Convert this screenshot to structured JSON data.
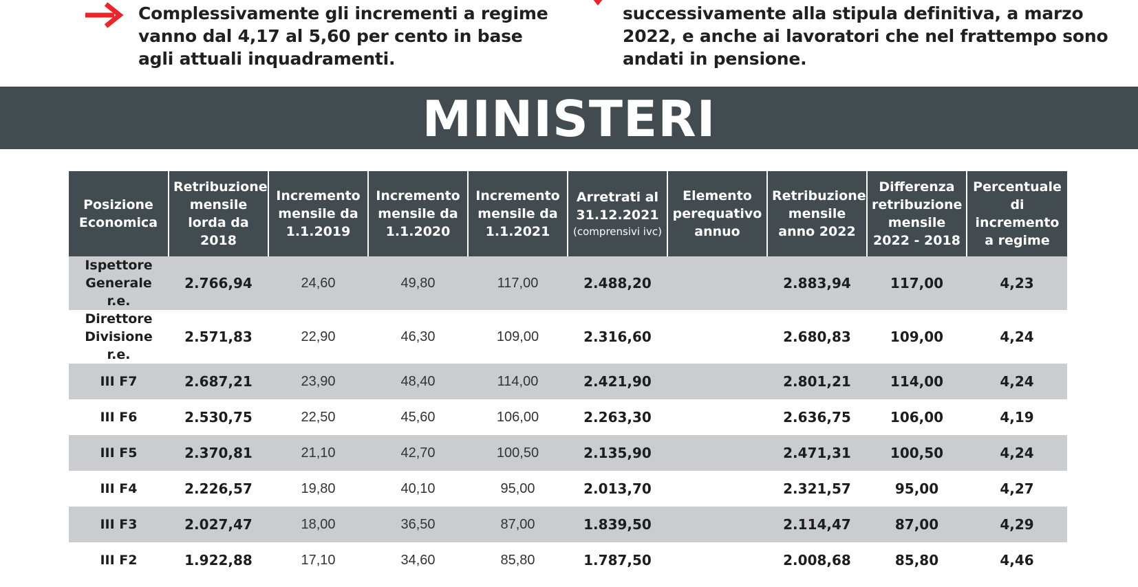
{
  "notes": {
    "left": "Complessivamente gli incrementi a regime vanno dal 4,17 al 5,60 per cento in base agli attuali inquadramenti.",
    "right": "successivamente alla stipula definitiva, a marzo 2022, e anche ai lavoratori che nel frattempo sono andati in pensione.",
    "accent_color": "#e8262b",
    "left_icon": "arrow-right-icon",
    "right_icon": "arrow-marker-icon"
  },
  "banner": {
    "title": "MINISTERI",
    "background": "#424b50"
  },
  "table": {
    "headers": [
      {
        "label": "Posizione Economica",
        "sub": ""
      },
      {
        "label": "Retribuzione mensile lorda da 2018",
        "sub": ""
      },
      {
        "label": "Incremento mensile da 1.1.2019",
        "sub": ""
      },
      {
        "label": "Incremento mensile da 1.1.2020",
        "sub": ""
      },
      {
        "label": "Incremento mensile da 1.1.2021",
        "sub": ""
      },
      {
        "label": "Arretrati al 31.12.2021",
        "sub": "(comprensivi ivc)"
      },
      {
        "label": "Elemento perequativo annuo",
        "sub": ""
      },
      {
        "label": "Retribuzione mensile anno 2022",
        "sub": ""
      },
      {
        "label": "Differenza retribuzione mensile 2022 - 2018",
        "sub": ""
      },
      {
        "label": "Percentuale di incremento a regime",
        "sub": ""
      }
    ],
    "rows": [
      {
        "cells": [
          "Ispettore Generale r.e.",
          "2.766,94",
          "24,60",
          "49,80",
          "117,00",
          "2.488,20",
          "",
          "2.883,94",
          "117,00",
          "4,23"
        ]
      },
      {
        "cells": [
          "Direttore Divisione r.e.",
          "2.571,83",
          "22,90",
          "46,30",
          "109,00",
          "2.316,60",
          "",
          "2.680,83",
          "109,00",
          "4,24"
        ]
      },
      {
        "cells": [
          "III F7",
          "2.687,21",
          "23,90",
          "48,40",
          "114,00",
          "2.421,90",
          "",
          "2.801,21",
          "114,00",
          "4,24"
        ]
      },
      {
        "cells": [
          "III F6",
          "2.530,75",
          "22,50",
          "45,60",
          "106,00",
          "2.263,30",
          "",
          "2.636,75",
          "106,00",
          "4,19"
        ]
      },
      {
        "cells": [
          "III F5",
          "2.370,81",
          "21,10",
          "42,70",
          "100,50",
          "2.135,90",
          "",
          "2.471,31",
          "100,50",
          "4,24"
        ]
      },
      {
        "cells": [
          "III F4",
          "2.226,57",
          "19,80",
          "40,10",
          "95,00",
          "2.013,70",
          "",
          "2.321,57",
          "95,00",
          "4,27"
        ]
      },
      {
        "cells": [
          "III F3",
          "2.027,47",
          "18,00",
          "36,50",
          "87,00",
          "1.839,50",
          "",
          "2.114,47",
          "87,00",
          "4,29"
        ]
      },
      {
        "cells": [
          "III F2",
          "1.922,88",
          "17,10",
          "34,60",
          "85,80",
          "1.787,50",
          "",
          "2.008,68",
          "85,80",
          "4,46"
        ]
      }
    ]
  }
}
